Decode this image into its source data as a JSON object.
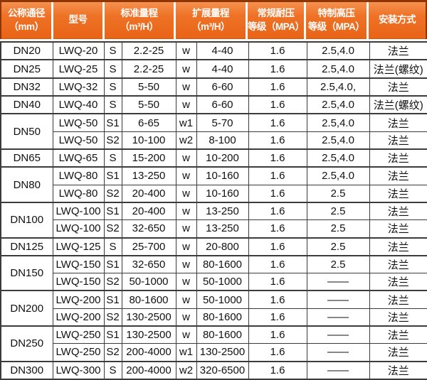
{
  "colors": {
    "header_bg": "#ec6c1e",
    "header_border": "#8e3503",
    "header_text": "#ffffff",
    "grid_border": "#3b3b3b",
    "cell_bg": "#ffffff",
    "text": "#111111"
  },
  "table": {
    "header": {
      "diameter": "公称通径\n（mm）",
      "model": "型号",
      "standard_range": "标准量程\n（m³/H）",
      "extended_range": "扩展量程\n（m³/H）",
      "normal_pressure": "常规耐压\n等级（MPA）",
      "special_pressure": "特制高压\n等级（MPA）",
      "installation": "安装方式"
    },
    "rows": [
      {
        "dn": "DN20",
        "dn_rowspan": 1,
        "group_start": true,
        "model": "LWQ-20",
        "std_code": "S",
        "std_range": "2.2-25",
        "ext_code": "w",
        "ext_range": "4-40",
        "normal": "1.6",
        "special": "2.5,4.0",
        "install": "法兰"
      },
      {
        "dn": "DN25",
        "dn_rowspan": 1,
        "group_start": true,
        "model": "LWQ-25",
        "std_code": "S",
        "std_range": "2.2-25",
        "ext_code": "w",
        "ext_range": "4-40",
        "normal": "1.6",
        "special": "2.5,4.0",
        "install": "法兰(螺纹)"
      },
      {
        "dn": "DN32",
        "dn_rowspan": 1,
        "group_start": true,
        "model": "LWQ-32",
        "std_code": "S",
        "std_range": "5-50",
        "ext_code": "w",
        "ext_range": "6-60",
        "normal": "1.6",
        "special": "2.5,4.0,",
        "install": "法兰"
      },
      {
        "dn": "DN40",
        "dn_rowspan": 1,
        "group_start": true,
        "model": "LWQ-40",
        "std_code": "S",
        "std_range": "5-50",
        "ext_code": "w",
        "ext_range": "6-60",
        "normal": "1.6",
        "special": "2.5,4.0",
        "install": "法兰(螺纹)"
      },
      {
        "dn": "DN50",
        "dn_rowspan": 2,
        "group_start": true,
        "model": "LWQ-50",
        "std_code": "S1",
        "std_range": "6-65",
        "ext_code": "w1",
        "ext_range": "5-70",
        "normal": "1.6",
        "special": "2.5,4.0",
        "install": "法兰"
      },
      {
        "group_start": false,
        "model": "LWQ-50",
        "std_code": "S2",
        "std_range": "10-100",
        "ext_code": "w2",
        "ext_range": "8-100",
        "normal": "1.6",
        "special": "2.5,4.0",
        "install": "法兰"
      },
      {
        "dn": "DN65",
        "dn_rowspan": 1,
        "group_start": true,
        "model": "LWQ-65",
        "std_code": "S",
        "std_range": "15-200",
        "ext_code": "w",
        "ext_range": "10-200",
        "normal": "1.6",
        "special": "2.5,4.0",
        "install": "法兰"
      },
      {
        "dn": "DN80",
        "dn_rowspan": 2,
        "group_start": true,
        "model": "LWQ-80",
        "std_code": "S1",
        "std_range": "13-250",
        "ext_code": "w",
        "ext_range": "10-160",
        "normal": "1.6",
        "special": "2.5,4.0",
        "install": "法兰"
      },
      {
        "group_start": false,
        "model": "LWQ-80",
        "std_code": "S2",
        "std_range": "20-400",
        "ext_code": "w",
        "ext_range": "10-160",
        "normal": "1.6",
        "special": "2.5",
        "install": "法兰"
      },
      {
        "dn": "DN100",
        "dn_rowspan": 2,
        "group_start": true,
        "model": "LWQ-100",
        "std_code": "S1",
        "std_range": "20-400",
        "ext_code": "w",
        "ext_range": "13-250",
        "normal": "1.6",
        "special": "2.5",
        "install": "法兰"
      },
      {
        "group_start": false,
        "model": "LWQ-100",
        "std_code": "S2",
        "std_range": "32-650",
        "ext_code": "w",
        "ext_range": "13-250",
        "normal": "1.6",
        "special": "2.5",
        "install": "法兰"
      },
      {
        "dn": "DN125",
        "dn_rowspan": 1,
        "group_start": true,
        "model": "LWQ-125",
        "std_code": "S",
        "std_range": "25-700",
        "ext_code": "w",
        "ext_range": "20-800",
        "normal": "1.6",
        "special": "2.5",
        "install": "法兰"
      },
      {
        "dn": "DN150",
        "dn_rowspan": 2,
        "group_start": true,
        "model": "LWQ-150",
        "std_code": "S1",
        "std_range": "32-650",
        "ext_code": "w",
        "ext_range": "80-1600",
        "normal": "1.6",
        "special": "2.5",
        "install": "法兰"
      },
      {
        "group_start": false,
        "model": "LWQ-150",
        "std_code": "S2",
        "std_range": "50-1000",
        "ext_code": "w",
        "ext_range": "50-1000",
        "normal": "1.6",
        "special": "——",
        "install": "法兰"
      },
      {
        "dn": "DN200",
        "dn_rowspan": 2,
        "group_start": true,
        "model": "LWQ-200",
        "std_code": "S1",
        "std_range": "80-1600",
        "ext_code": "w",
        "ext_range": "50-1000",
        "normal": "1.6",
        "special": "——",
        "install": "法兰"
      },
      {
        "group_start": false,
        "model": "LWQ-200",
        "std_code": "S2",
        "std_range": "130-2500",
        "ext_code": "w",
        "ext_range": "80-1600",
        "normal": "1.6",
        "special": "——",
        "install": "法兰"
      },
      {
        "dn": "DN250",
        "dn_rowspan": 2,
        "group_start": true,
        "model": "LWQ-250",
        "std_code": "S1",
        "std_range": "130-2500",
        "ext_code": "w",
        "ext_range": "80-1600",
        "normal": "1.6",
        "special": "——",
        "install": "法兰"
      },
      {
        "group_start": false,
        "model": "LWQ-250",
        "std_code": "S2",
        "std_range": "200-4000",
        "ext_code": "w1",
        "ext_range": "130-2500",
        "normal": "1.6",
        "special": "——",
        "install": "法兰"
      },
      {
        "dn": "DN300",
        "dn_rowspan": 1,
        "group_start": true,
        "model": "LWQ-300",
        "std_code": "S",
        "std_range": "200-4000",
        "ext_code": "w2",
        "ext_range": "320-6500",
        "normal": "1.6",
        "special": "——",
        "install": "法兰"
      }
    ]
  }
}
